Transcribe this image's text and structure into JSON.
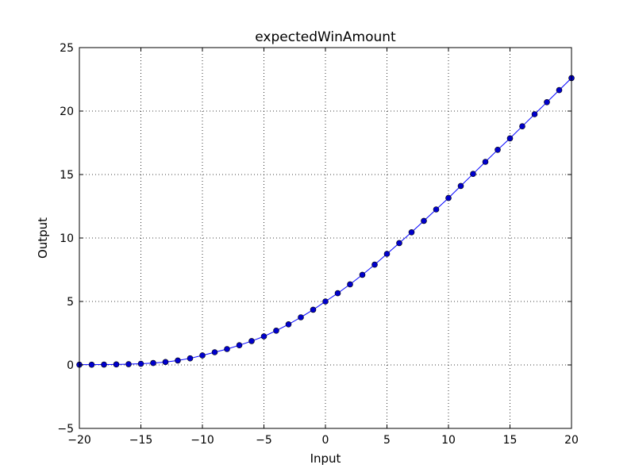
{
  "chart_data": {
    "type": "line",
    "title": "expectedWinAmount",
    "xlabel": "Input",
    "ylabel": "Output",
    "xlim": [
      -20,
      20
    ],
    "ylim": [
      -5,
      25
    ],
    "xticks": [
      "−20",
      "−15",
      "−10",
      "−5",
      "0",
      "5",
      "10",
      "15",
      "20"
    ],
    "xtick_values": [
      -20,
      -15,
      -10,
      -5,
      0,
      5,
      10,
      15,
      20
    ],
    "yticks": [
      "−5",
      "0",
      "5",
      "10",
      "15",
      "20",
      "25"
    ],
    "ytick_values": [
      -5,
      0,
      5,
      10,
      15,
      20,
      25
    ],
    "grid": true,
    "series": [
      {
        "color": "#0000ff",
        "marker_color": "#0000cc",
        "x": [
          -20,
          -19,
          -18,
          -17,
          -16,
          -15,
          -14,
          -13,
          -12,
          -11,
          -10,
          -9,
          -8,
          -7,
          -6,
          -5,
          -4,
          -3,
          -2,
          -1,
          0,
          1,
          2,
          3,
          4,
          5,
          6,
          7,
          8,
          9,
          10,
          11,
          12,
          13,
          14,
          15,
          16,
          17,
          18,
          19,
          20
        ],
        "y": [
          0.02,
          0.02,
          0.03,
          0.04,
          0.06,
          0.09,
          0.15,
          0.23,
          0.35,
          0.52,
          0.75,
          1.0,
          1.25,
          1.55,
          1.88,
          2.25,
          2.7,
          3.2,
          3.75,
          4.35,
          5.0,
          5.65,
          6.35,
          7.1,
          7.9,
          8.75,
          9.6,
          10.45,
          11.35,
          12.25,
          13.15,
          14.1,
          15.05,
          16.0,
          16.95,
          17.85,
          18.8,
          19.75,
          20.7,
          21.65,
          22.6
        ]
      }
    ]
  }
}
